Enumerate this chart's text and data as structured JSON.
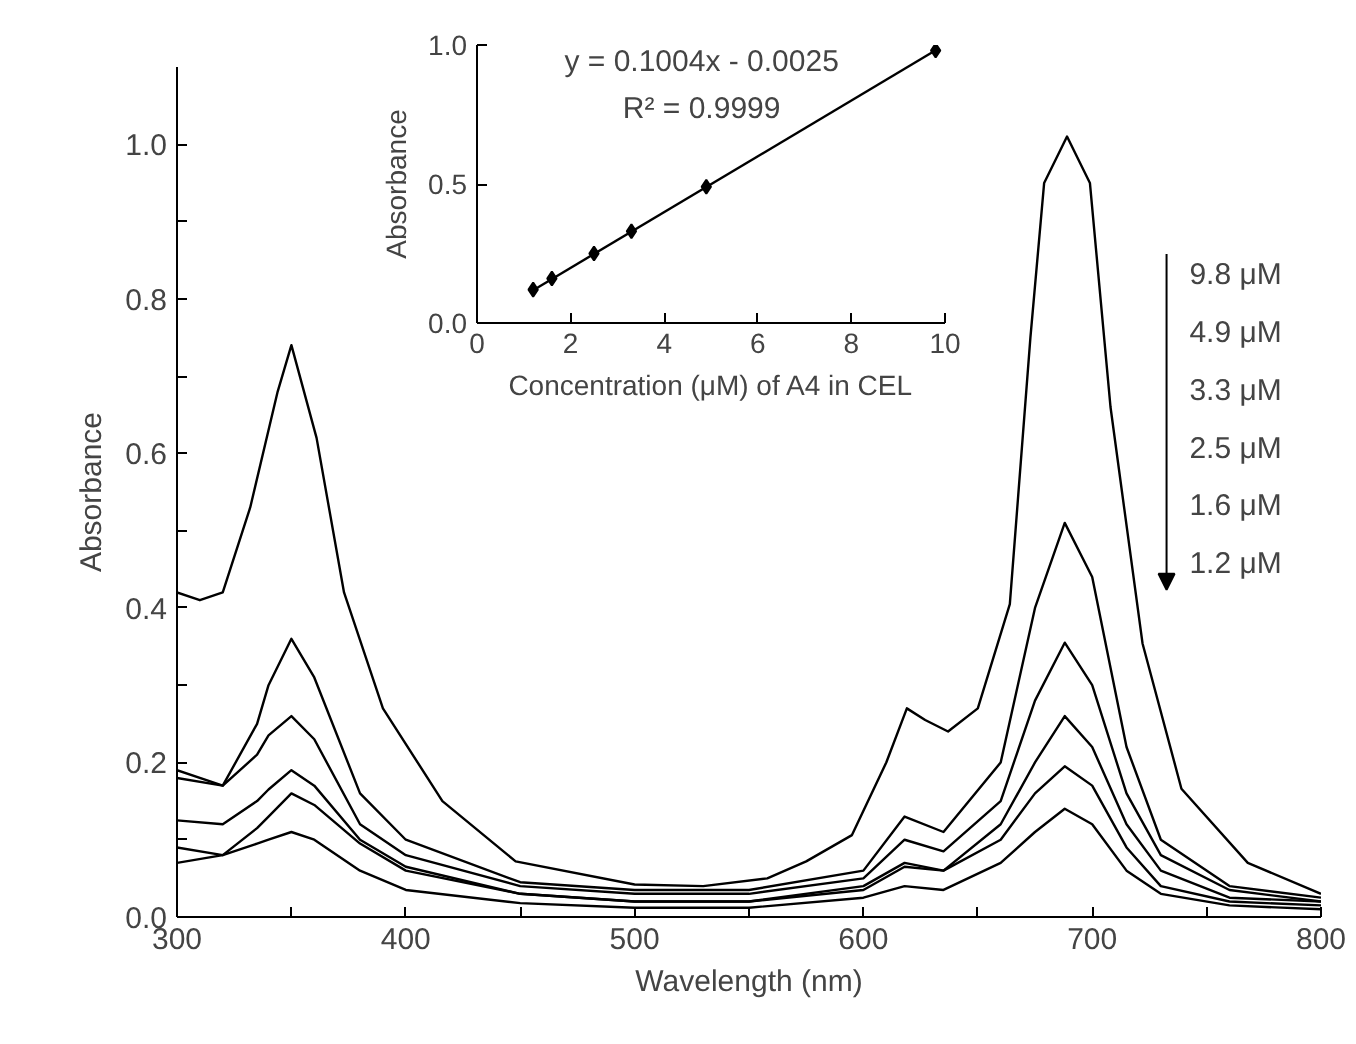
{
  "chart_data": [
    {
      "type": "line",
      "xlabel": "Wavelength (nm)",
      "ylabel": "Absorbance",
      "xlim": [
        300,
        800
      ],
      "ylim": [
        0,
        1.1
      ],
      "xticks": [
        300,
        {
          "value": 350,
          "label": null
        },
        400,
        {
          "value": 450,
          "label": null
        },
        500,
        {
          "value": 550,
          "label": null
        },
        600,
        {
          "value": 650,
          "label": null
        },
        700,
        {
          "value": 750,
          "label": null
        },
        800
      ],
      "yticks": [
        {
          "value": 0,
          "label": "0.0"
        },
        {
          "value": 0.1,
          "label": null
        },
        0.2,
        {
          "value": 0.3,
          "label": null
        },
        0.4,
        {
          "value": 0.5,
          "label": null
        },
        0.6,
        {
          "value": 0.7,
          "label": null
        },
        0.8,
        {
          "value": 0.9,
          "label": null
        },
        {
          "value": 1.0,
          "label": "1.0"
        }
      ],
      "grid": false,
      "annotations": [
        "9.8 μM",
        "4.9 μM",
        "3.3 μM",
        "2.5 μM",
        "1.6 μM",
        "1.2 μM"
      ],
      "x": [
        300,
        320,
        335,
        340,
        350,
        360,
        380,
        400,
        450,
        500,
        550,
        600,
        618,
        635,
        660,
        675,
        688,
        700,
        715,
        730,
        760,
        800
      ],
      "series": [
        {
          "color": "#000000",
          "x": [
            300,
            310,
            320,
            332,
            344,
            350,
            361,
            373,
            390,
            416,
            448,
            500,
            530,
            558,
            575,
            595,
            610,
            619,
            627,
            637,
            650,
            664,
            673,
            679,
            689,
            699,
            708,
            722,
            739,
            768,
            800
          ],
          "values": [
            0.42,
            0.41,
            0.42,
            0.53,
            0.68,
            0.74,
            0.62,
            0.42,
            0.27,
            0.15,
            0.072,
            0.042,
            0.04,
            0.05,
            0.072,
            0.106,
            0.2,
            0.27,
            0.255,
            0.24,
            0.27,
            0.405,
            0.75,
            0.95,
            1.01,
            0.95,
            0.66,
            0.354,
            0.166,
            0.07,
            0.03
          ]
        },
        {
          "color": "#000000",
          "values": [
            0.19,
            0.17,
            0.25,
            0.3,
            0.36,
            0.31,
            0.16,
            0.1,
            0.045,
            0.035,
            0.035,
            0.06,
            0.13,
            0.11,
            0.2,
            0.4,
            0.51,
            0.44,
            0.22,
            0.1,
            0.04,
            0.025
          ]
        },
        {
          "color": "#000000",
          "values": [
            0.18,
            0.17,
            0.21,
            0.235,
            0.26,
            0.23,
            0.12,
            0.08,
            0.04,
            0.03,
            0.03,
            0.05,
            0.1,
            0.085,
            0.15,
            0.28,
            0.355,
            0.3,
            0.16,
            0.08,
            0.035,
            0.02
          ]
        },
        {
          "color": "#000000",
          "values": [
            0.125,
            0.12,
            0.15,
            0.165,
            0.19,
            0.17,
            0.1,
            0.065,
            0.03,
            0.02,
            0.02,
            0.04,
            0.07,
            0.06,
            0.12,
            0.2,
            0.26,
            0.22,
            0.12,
            0.06,
            0.025,
            0.02
          ]
        },
        {
          "color": "#000000",
          "values": [
            0.09,
            0.08,
            0.115,
            0.13,
            0.16,
            0.145,
            0.095,
            0.06,
            0.03,
            0.02,
            0.02,
            0.035,
            0.065,
            0.06,
            0.1,
            0.16,
            0.195,
            0.17,
            0.09,
            0.04,
            0.02,
            0.015
          ]
        },
        {
          "color": "#000000",
          "values": [
            0.07,
            0.08,
            0.095,
            0.1,
            0.11,
            0.1,
            0.06,
            0.035,
            0.018,
            0.012,
            0.012,
            0.025,
            0.04,
            0.035,
            0.07,
            0.11,
            0.14,
            0.12,
            0.06,
            0.03,
            0.015,
            0.01
          ]
        }
      ]
    },
    {
      "type": "scatter",
      "xlabel": "Concentration (μM) of A4 in CEL",
      "ylabel": "Absorbance",
      "xlim": [
        0,
        10
      ],
      "ylim": [
        0,
        1.0
      ],
      "xticks": [
        0,
        2,
        4,
        6,
        8,
        10
      ],
      "yticks": [
        {
          "value": 0,
          "label": "0.0"
        },
        0.5,
        {
          "value": 1.0,
          "label": "1.0"
        }
      ],
      "grid": false,
      "annotations": [
        "y = 0.1004x - 0.0025",
        "R² = 0.9999"
      ],
      "series": [
        {
          "type": "scatter",
          "marker": "diamond",
          "color": "#000000",
          "x": [
            1.2,
            1.6,
            2.5,
            3.3,
            4.9,
            9.8
          ],
          "values": [
            0.12,
            0.16,
            0.25,
            0.33,
            0.49,
            0.98
          ]
        },
        {
          "type": "line",
          "marker": "none",
          "color": "#000000",
          "x": [
            1.2,
            9.8
          ],
          "values": [
            0.118,
            0.981
          ]
        }
      ]
    }
  ]
}
